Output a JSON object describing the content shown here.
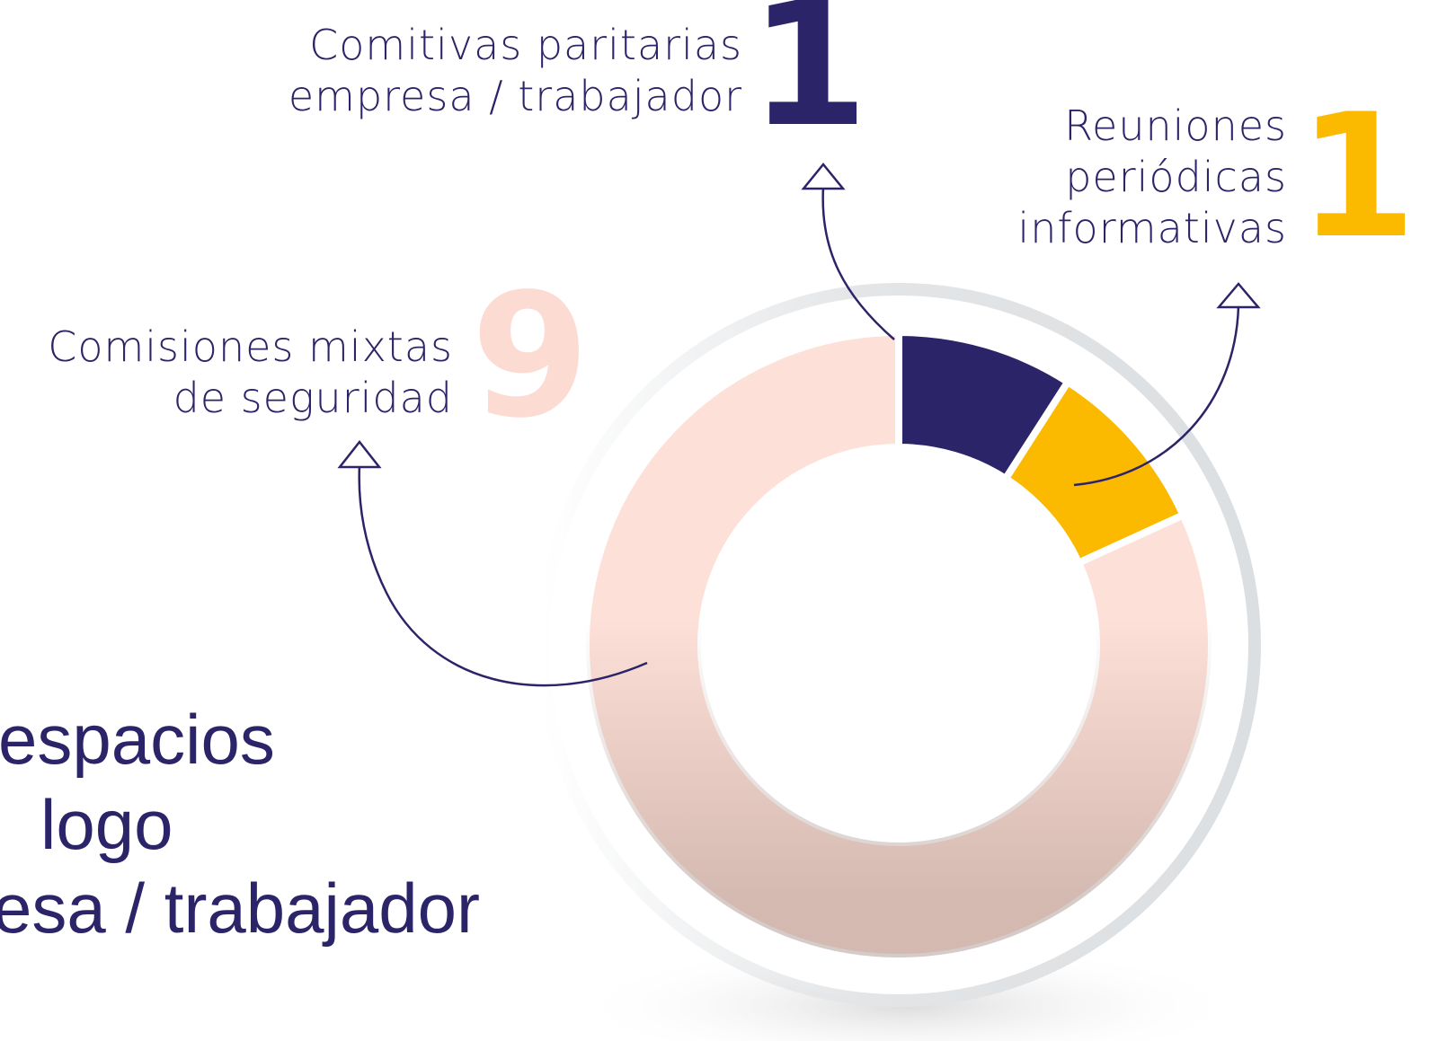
{
  "chart_data": {
    "type": "pie",
    "donut": true,
    "title_lines": [
      "espacios",
      "logo",
      "esa / trabajador"
    ],
    "categories": [
      "Comitivas paritarias\nempresa / trabajador",
      "Reuniones\nperiódicas\ninformativas",
      "Comisiones mixtas\nde seguridad"
    ],
    "values": [
      1,
      1,
      9
    ],
    "colors": [
      "#2b2468",
      "#fbb900",
      "#fde0d8"
    ]
  }
}
